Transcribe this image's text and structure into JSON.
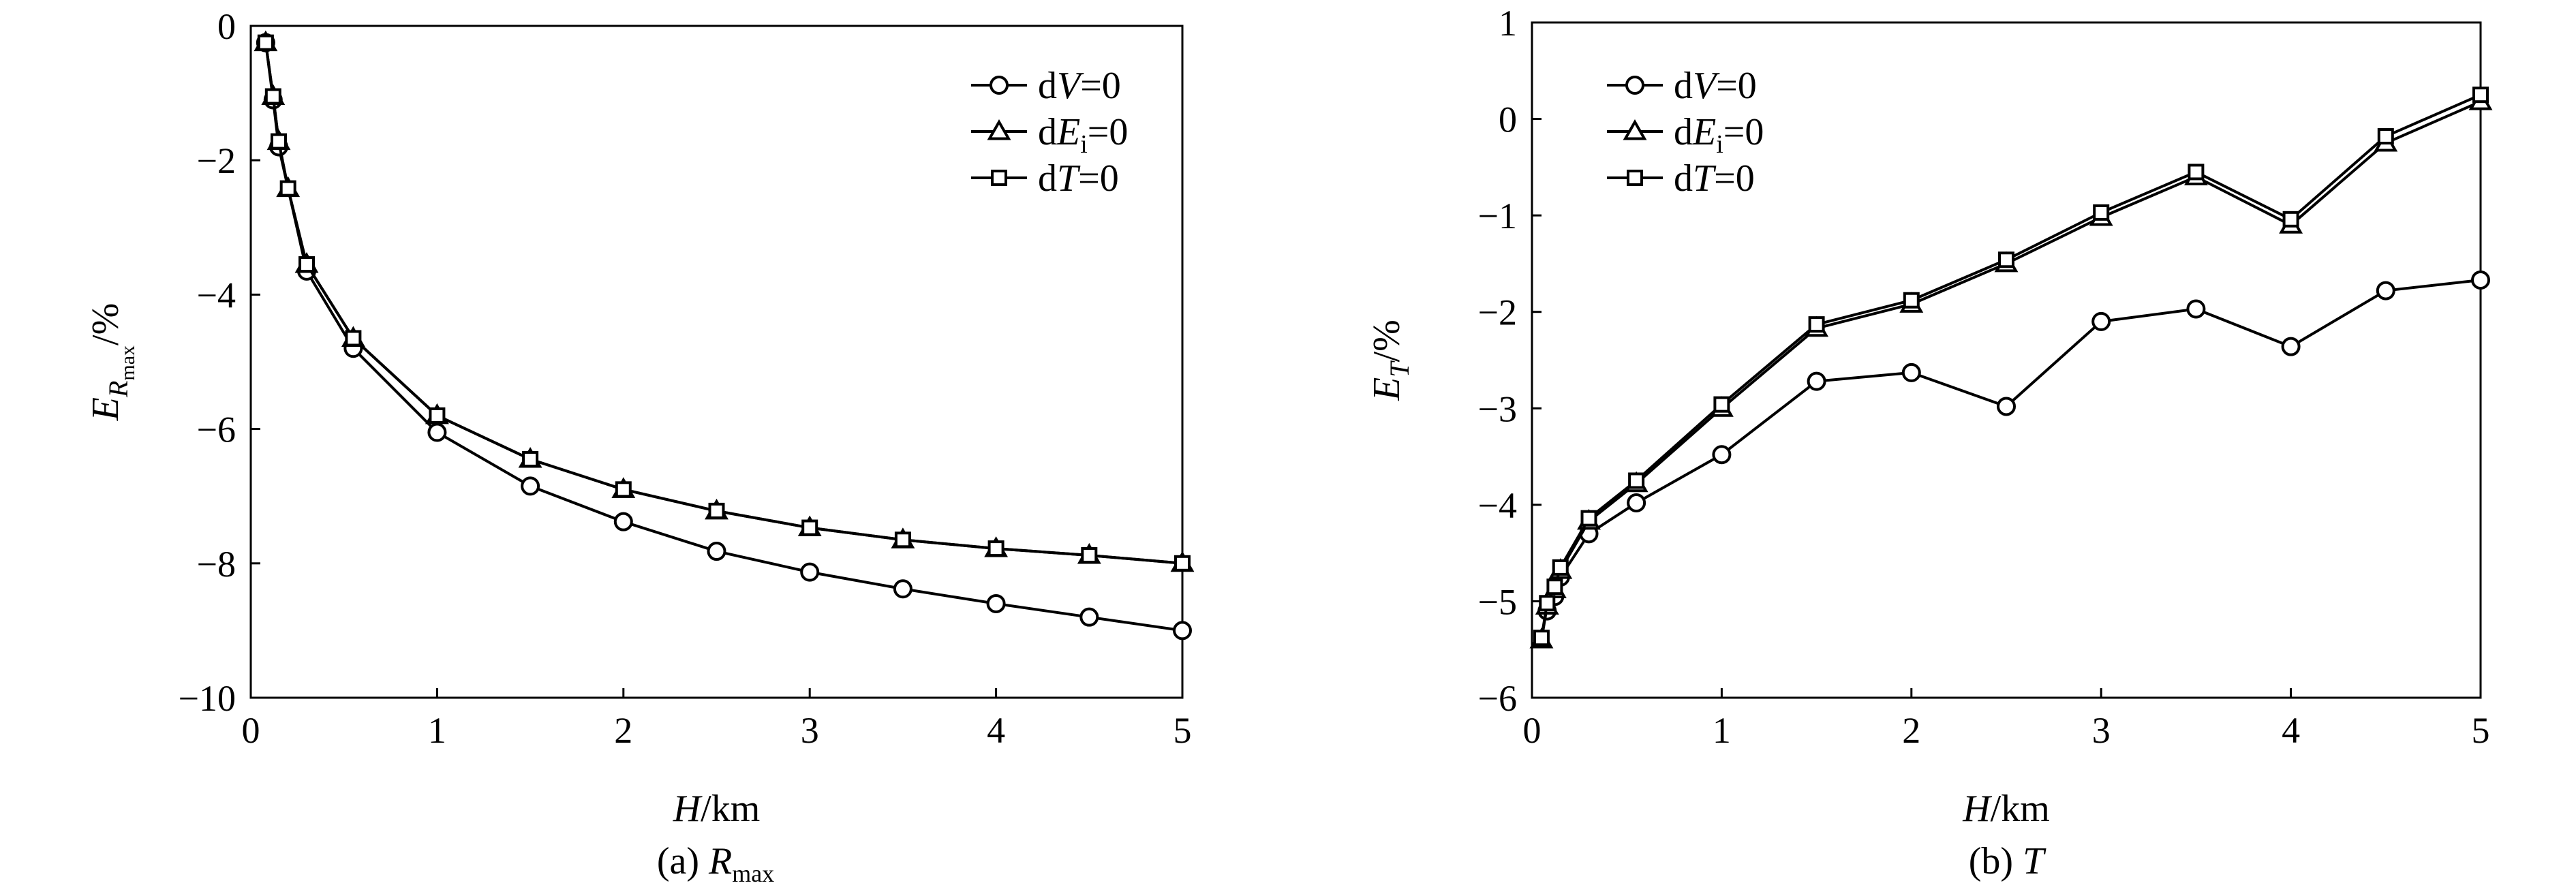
{
  "chart_data": [
    {
      "type": "line",
      "caption": {
        "prefix": "(a) ",
        "main": "R",
        "sub": "max"
      },
      "xlabel": {
        "italic": "H",
        "rest": "/km"
      },
      "ylabel": {
        "main": "E",
        "sub_italic": "R",
        "subsub": "max",
        "rest": "/%"
      },
      "xlim": [
        0,
        5
      ],
      "ylim": [
        -10,
        0
      ],
      "xticks": [
        0,
        1,
        2,
        3,
        4,
        5
      ],
      "yticks": [
        0,
        -2,
        -4,
        -6,
        -8,
        -10
      ],
      "xtick_labels": [
        "0",
        "1",
        "2",
        "3",
        "4",
        "5"
      ],
      "ytick_labels": [
        "0",
        "−2",
        "−4",
        "−6",
        "−8",
        "−10"
      ],
      "legend_position": "top-right",
      "series": [
        {
          "label": {
            "pre": "d",
            "italic": "V",
            "sub": "",
            "post": "=0"
          },
          "marker": "circle",
          "x": [
            0.08,
            0.12,
            0.15,
            0.3,
            0.55,
            1.0,
            1.5,
            2.0,
            2.5,
            3.0,
            3.5,
            4.0,
            4.5,
            5.0
          ],
          "y": [
            -0.25,
            -1.1,
            -1.8,
            -3.65,
            -4.8,
            -6.05,
            -6.85,
            -7.38,
            -7.82,
            -8.13,
            -8.38,
            -8.6,
            -8.8,
            -9.0
          ]
        },
        {
          "label": {
            "pre": "d",
            "italic": "E",
            "sub": "i",
            "post": "=0"
          },
          "marker": "triangle",
          "x": [
            0.08,
            0.12,
            0.15,
            0.2,
            0.3,
            0.55,
            1.0,
            1.5,
            2.0,
            2.5,
            3.0,
            3.5,
            4.0,
            4.5,
            5.0
          ],
          "y": [
            -0.25,
            -1.05,
            -1.72,
            -2.42,
            -3.55,
            -4.65,
            -5.8,
            -6.45,
            -6.9,
            -7.22,
            -7.47,
            -7.65,
            -7.78,
            -7.88,
            -8.0
          ]
        },
        {
          "label": {
            "pre": "d",
            "italic": "T",
            "sub": "",
            "post": "=0"
          },
          "marker": "square",
          "x": [
            0.08,
            0.12,
            0.15,
            0.2,
            0.3,
            0.55,
            1.0,
            1.5,
            2.0,
            2.5,
            3.0,
            3.5,
            4.0,
            4.5,
            5.0
          ],
          "y": [
            -0.25,
            -1.05,
            -1.72,
            -2.42,
            -3.55,
            -4.65,
            -5.8,
            -6.45,
            -6.9,
            -7.22,
            -7.47,
            -7.65,
            -7.78,
            -7.88,
            -8.0
          ]
        }
      ]
    },
    {
      "type": "line",
      "caption": {
        "prefix": "(b) ",
        "main": "T",
        "sub": ""
      },
      "xlabel": {
        "italic": "H",
        "rest": "/km"
      },
      "ylabel": {
        "main": "E",
        "sub_italic": "T",
        "subsub": "",
        "rest": "/%"
      },
      "xlim": [
        0,
        5
      ],
      "ylim": [
        -6,
        1
      ],
      "xticks": [
        0,
        1,
        2,
        3,
        4,
        5
      ],
      "yticks": [
        1,
        0,
        -1,
        -2,
        -3,
        -4,
        -5,
        -6
      ],
      "xtick_labels": [
        "0",
        "1",
        "2",
        "3",
        "4",
        "5"
      ],
      "ytick_labels": [
        "1",
        "0",
        "−1",
        "−2",
        "−3",
        "−4",
        "−5",
        "−6"
      ],
      "legend_position": "top-left",
      "series": [
        {
          "label": {
            "pre": "d",
            "italic": "V",
            "sub": "",
            "post": "=0"
          },
          "marker": "circle",
          "x": [
            0.08,
            0.12,
            0.15,
            0.3,
            0.55,
            1.0,
            1.5,
            2.0,
            2.5,
            3.0,
            3.5,
            4.0,
            4.5,
            5.0
          ],
          "y": [
            -5.1,
            -4.95,
            -4.75,
            -4.3,
            -3.98,
            -3.48,
            -2.72,
            -2.63,
            -2.98,
            -2.1,
            -1.97,
            -2.36,
            -1.78,
            -1.67
          ]
        },
        {
          "label": {
            "pre": "d",
            "italic": "E",
            "sub": "i",
            "post": "=0"
          },
          "marker": "triangle",
          "x": [
            0.05,
            0.08,
            0.12,
            0.15,
            0.3,
            0.55,
            1.0,
            1.5,
            2.0,
            2.5,
            3.0,
            3.5,
            4.0,
            4.5,
            5.0
          ],
          "y": [
            -5.4,
            -5.05,
            -4.88,
            -4.68,
            -4.17,
            -3.78,
            -3.0,
            -2.17,
            -1.92,
            -1.5,
            -1.02,
            -0.6,
            -1.1,
            -0.25,
            0.18
          ]
        },
        {
          "label": {
            "pre": "d",
            "italic": "T",
            "sub": "",
            "post": "=0"
          },
          "marker": "square",
          "x": [
            0.05,
            0.08,
            0.12,
            0.15,
            0.3,
            0.55,
            1.0,
            1.5,
            2.0,
            2.5,
            3.0,
            3.5,
            4.0,
            4.5,
            5.0
          ],
          "y": [
            -5.38,
            -5.02,
            -4.85,
            -4.65,
            -4.14,
            -3.75,
            -2.96,
            -2.13,
            -1.88,
            -1.46,
            -0.97,
            -0.55,
            -1.04,
            -0.18,
            0.25
          ]
        }
      ]
    }
  ]
}
